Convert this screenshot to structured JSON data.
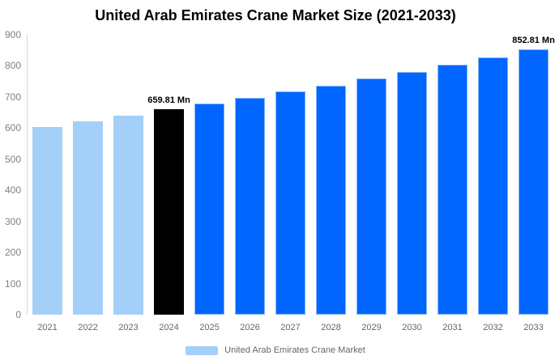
{
  "colors": {
    "background": "#FFFFFF",
    "bar_light_blue": "#A3CFF9",
    "bar_black": "#000000",
    "bar_blue": "#0066FF",
    "bar_blue_border": "#84B6F4",
    "axis_line": "#D6D6D6",
    "tick_text": "#808080",
    "year_text": "#666666",
    "legend_text": "#666666",
    "title_text": "#000000",
    "data_label_text": "#000000"
  },
  "legend": {
    "label": "United Arab Emirates Crane Market",
    "swatch_color": "#A3CFF9"
  },
  "chart_data": {
    "type": "bar",
    "title": "United Arab Emirates Crane Market Size (2021-2033)",
    "categories": [
      "2021",
      "2022",
      "2023",
      "2024",
      "2025",
      "2026",
      "2027",
      "2028",
      "2029",
      "2030",
      "2031",
      "2032",
      "2033"
    ],
    "values": [
      603,
      621,
      640,
      659.81,
      678,
      697,
      717,
      737,
      759,
      781,
      804,
      828,
      852.81
    ],
    "bar_colors": [
      "#A3CFF9",
      "#A3CFF9",
      "#A3CFF9",
      "#000000",
      "#0066FF",
      "#0066FF",
      "#0066FF",
      "#0066FF",
      "#0066FF",
      "#0066FF",
      "#0066FF",
      "#0066FF",
      "#0066FF"
    ],
    "data_labels": [
      {
        "category": "2024",
        "text": "659.81 Mn"
      },
      {
        "category": "2033",
        "text": "852.81 Mn"
      }
    ],
    "xlabel": "",
    "ylabel": "",
    "ylim": [
      0,
      900
    ],
    "yticks": [
      0,
      100,
      200,
      300,
      400,
      500,
      600,
      700,
      800,
      900
    ],
    "grid": false,
    "legend_position": "bottom"
  }
}
